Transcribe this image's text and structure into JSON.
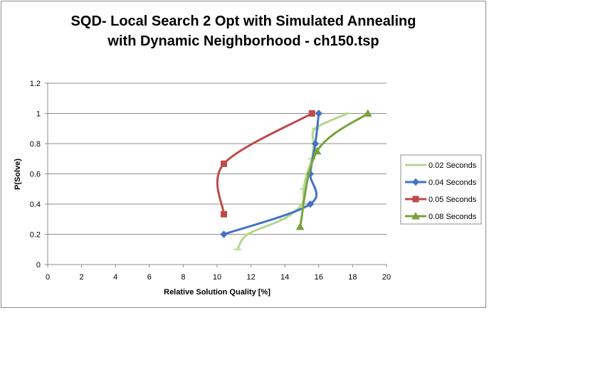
{
  "chart_data": {
    "type": "line",
    "title_lines": [
      "SQD- Local Search 2 Opt with Simulated Annealing",
      "with Dynamic Neighborhood - ch150.tsp"
    ],
    "xlabel": "Relative Solution Quality [%]",
    "ylabel": "P(Solve)",
    "xlim": [
      0,
      20
    ],
    "ylim": [
      0,
      1.2
    ],
    "x_ticks": [
      "0",
      "2",
      "4",
      "6",
      "8",
      "10",
      "12",
      "14",
      "16",
      "18",
      "20"
    ],
    "y_ticks": [
      "0",
      "0.2",
      "0.4",
      "0.6",
      "0.8",
      "1",
      "1.2"
    ],
    "grid": "horizontal",
    "legend_position": "right",
    "series": [
      {
        "name": "0.02 Seconds",
        "color": "#b3d68f",
        "marker": "dash",
        "points": [
          {
            "x": 11.2,
            "y": 0.1
          },
          {
            "x": 11.8,
            "y": 0.2
          },
          {
            "x": 13.9,
            "y": 0.3
          },
          {
            "x": 15.0,
            "y": 0.4
          },
          {
            "x": 15.1,
            "y": 0.5
          },
          {
            "x": 15.3,
            "y": 0.6
          },
          {
            "x": 15.6,
            "y": 0.7
          },
          {
            "x": 15.7,
            "y": 0.8
          },
          {
            "x": 15.8,
            "y": 0.9
          },
          {
            "x": 17.7,
            "y": 1.0
          }
        ]
      },
      {
        "name": "0.04 Seconds",
        "color": "#4472c4",
        "marker": "diamond",
        "points": [
          {
            "x": 10.4,
            "y": 0.2
          },
          {
            "x": 15.5,
            "y": 0.4
          },
          {
            "x": 15.5,
            "y": 0.6
          },
          {
            "x": 15.8,
            "y": 0.8
          },
          {
            "x": 16.0,
            "y": 1.0
          }
        ]
      },
      {
        "name": "0.05 Seconds",
        "color": "#be4b48",
        "marker": "square",
        "points": [
          {
            "x": 10.4,
            "y": 0.333
          },
          {
            "x": 10.4,
            "y": 0.667
          },
          {
            "x": 15.6,
            "y": 1.0
          }
        ]
      },
      {
        "name": "0.08 Seconds",
        "color": "#77a33c",
        "marker": "triangle",
        "points": [
          {
            "x": 14.9,
            "y": 0.25
          },
          {
            "x": 15.9,
            "y": 0.75
          },
          {
            "x": 18.9,
            "y": 1.0
          }
        ]
      }
    ]
  }
}
